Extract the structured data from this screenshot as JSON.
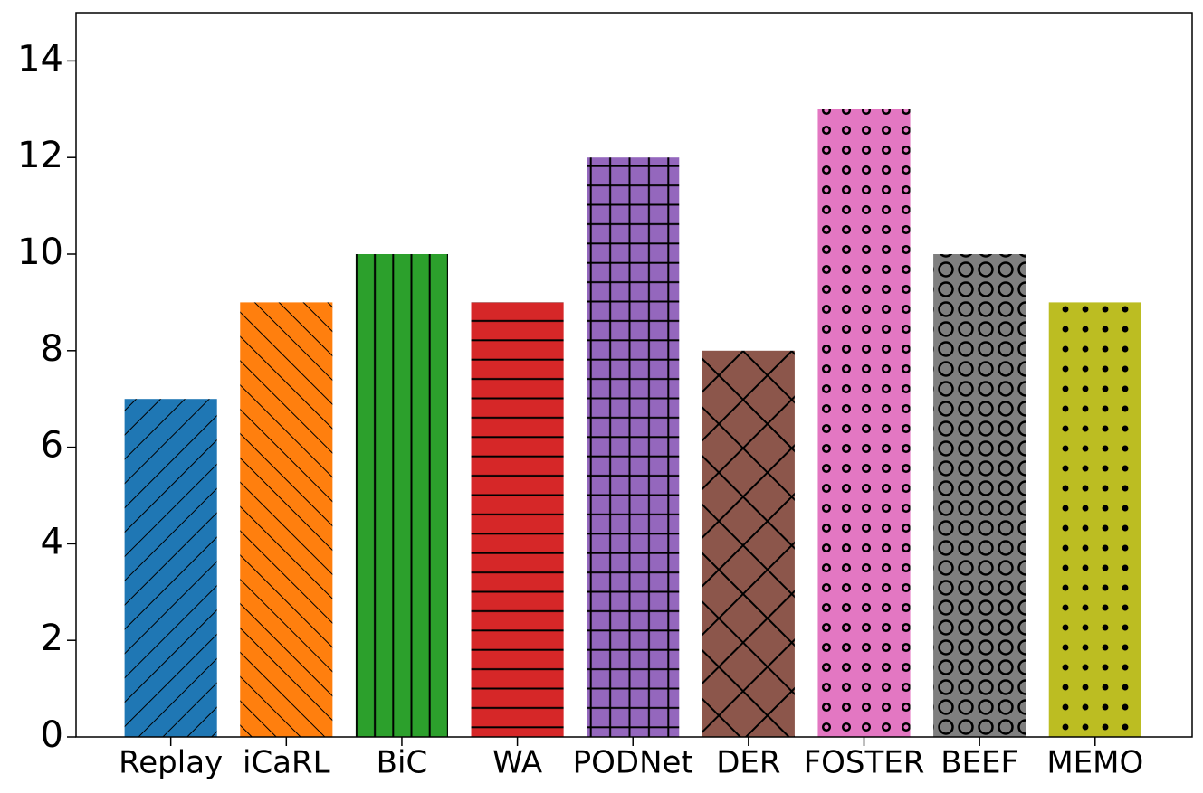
{
  "chart_data": {
    "type": "bar",
    "categories": [
      "Replay",
      "iCaRL",
      "BiC",
      "WA",
      "PODNet",
      "DER",
      "FOSTER",
      "BEEF",
      "MEMO"
    ],
    "values": [
      7,
      9,
      10,
      9,
      12,
      8,
      13,
      10,
      9
    ],
    "colors": [
      "#1f77b4",
      "#ff7f0e",
      "#2ca02c",
      "#d62728",
      "#9467bd",
      "#8c564b",
      "#e377c2",
      "#7f7f7f",
      "#bcbd22"
    ],
    "hatches": [
      "/",
      "\\",
      "|",
      "-",
      "+",
      "x",
      "o",
      "O",
      "."
    ],
    "ylim": [
      0,
      15
    ],
    "yticks": [
      0,
      2,
      4,
      6,
      8,
      10,
      12,
      14
    ]
  }
}
